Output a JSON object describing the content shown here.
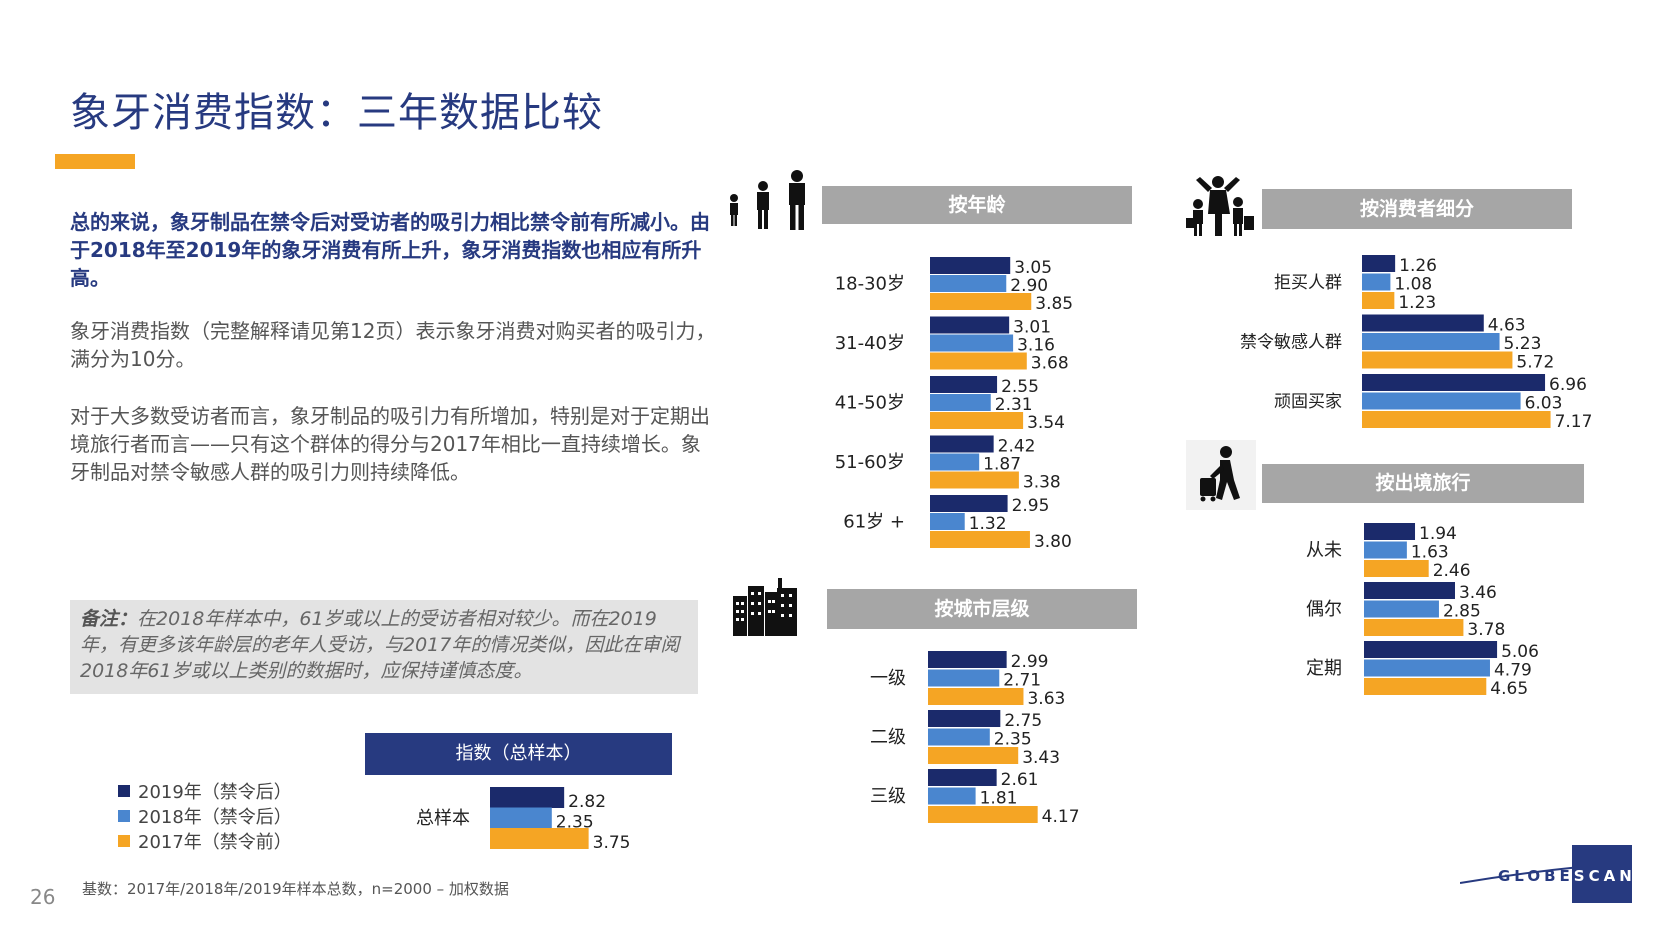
{
  "page": {
    "title": "象牙消费指数：三年数据比较",
    "paragraph1": "总的来说，象牙制品在禁令后对受访者的吸引力相比禁令前有所减小。由于2018年至2019年的象牙消费有所上升，象牙消费指数也相应有所升高。",
    "paragraph2": "象牙消费指数（完整解释请见第12页）表示象牙消费对购买者的吸引力，满分为10分。",
    "paragraph3": "对于大多数受访者而言，象牙制品的吸引力有所增加，特别是对于定期出境旅行者而言——只有这个群体的得分与2017年相比一直持续增长。象牙制品对禁令敏感人群的吸引力则持续降低。",
    "note_label": "备注：",
    "note_text": "在2018年样本中，61岁或以上的受访者相对较少。而在2019年，有更多该年龄层的老年人受访，与2017年的情况类似，因此在审阅2018年61岁或以上类别的数据时，应保持谨慎态度。",
    "footer": "基数：2017年/2018年/2019年样本总数，n=2000 – 加权数据",
    "page_number": "26",
    "logo_left": "GLOBE",
    "logo_right": "SCAN"
  },
  "colors": {
    "y2019": "#1b2a6b",
    "y2018": "#4a86cf",
    "y2017": "#f5a524",
    "panel_header": "#a6a6a6",
    "brand": "#273a80"
  },
  "legend": [
    {
      "label": "2019年（禁令后）",
      "color": "#1b2a6b"
    },
    {
      "label": "2018年（禁令后）",
      "color": "#4a86cf"
    },
    {
      "label": "2017年（禁令前）",
      "color": "#f5a524"
    }
  ],
  "icons": {
    "age": "people-icon",
    "city": "buildings-icon",
    "segment": "family-shopping-icon",
    "travel": "traveler-icon"
  },
  "chart_data": [
    {
      "id": "age",
      "type": "bar",
      "title": "按年龄",
      "categories": [
        "18-30岁",
        "31-40岁",
        "41-50岁",
        "51-60岁",
        "61岁 +"
      ],
      "series": [
        {
          "name": "2019年（禁令后）",
          "values": [
            3.05,
            3.01,
            2.55,
            2.42,
            2.95
          ]
        },
        {
          "name": "2018年（禁令后）",
          "values": [
            2.9,
            3.16,
            2.31,
            1.87,
            1.32
          ]
        },
        {
          "name": "2017年（禁令前）",
          "values": [
            3.85,
            3.68,
            3.54,
            3.38,
            3.8
          ]
        }
      ],
      "labels": [
        [
          "3.05",
          "2.90",
          "3.85"
        ],
        [
          "3.01",
          "3.16",
          "3.68"
        ],
        [
          "2.55",
          "2.31",
          "3.54"
        ],
        [
          "2.42",
          "1.87",
          "3.38"
        ],
        [
          "2.95",
          "1.32",
          "3.80"
        ]
      ]
    },
    {
      "id": "city",
      "type": "bar",
      "title": "按城市层级",
      "categories": [
        "一级",
        "二级",
        "三级"
      ],
      "series": [
        {
          "name": "2019年（禁令后）",
          "values": [
            2.99,
            2.75,
            2.61
          ]
        },
        {
          "name": "2018年（禁令后）",
          "values": [
            2.71,
            2.35,
            1.81
          ]
        },
        {
          "name": "2017年（禁令前）",
          "values": [
            3.63,
            3.43,
            4.17
          ]
        }
      ],
      "labels": [
        [
          "2.99",
          "2.71",
          "3.63"
        ],
        [
          "2.75",
          "2.35",
          "3.43"
        ],
        [
          "2.61",
          "1.81",
          "4.17"
        ]
      ]
    },
    {
      "id": "segment",
      "type": "bar",
      "title": "按消费者细分",
      "categories": [
        "拒买人群",
        "禁令敏感人群",
        "顽固买家"
      ],
      "series": [
        {
          "name": "2019年（禁令后）",
          "values": [
            1.26,
            4.63,
            6.96
          ]
        },
        {
          "name": "2018年（禁令后）",
          "values": [
            1.08,
            5.23,
            6.03
          ]
        },
        {
          "name": "2017年（禁令前）",
          "values": [
            1.23,
            5.72,
            7.17
          ]
        }
      ],
      "labels": [
        [
          "1.26",
          "1.08",
          "1.23"
        ],
        [
          "4.63",
          "5.23",
          "5.72"
        ],
        [
          "6.96",
          "6.03",
          "7.17"
        ]
      ]
    },
    {
      "id": "travel",
      "type": "bar",
      "title": "按出境旅行",
      "categories": [
        "从未",
        "偶尔",
        "定期"
      ],
      "series": [
        {
          "name": "2019年（禁令后）",
          "values": [
            1.94,
            3.46,
            5.06
          ]
        },
        {
          "name": "2018年（禁令后）",
          "values": [
            1.63,
            2.85,
            4.79
          ]
        },
        {
          "name": "2017年（禁令前）",
          "values": [
            2.46,
            3.78,
            4.65
          ]
        }
      ],
      "labels": [
        [
          "1.94",
          "1.63",
          "2.46"
        ],
        [
          "3.46",
          "2.85",
          "3.78"
        ],
        [
          "5.06",
          "4.79",
          "4.65"
        ]
      ]
    },
    {
      "id": "total",
      "type": "bar",
      "title": "指数（总样本）",
      "categories": [
        "总样本"
      ],
      "series": [
        {
          "name": "2019年（禁令后）",
          "values": [
            2.82
          ]
        },
        {
          "name": "2018年（禁令后）",
          "values": [
            2.35
          ]
        },
        {
          "name": "2017年（禁令前）",
          "values": [
            3.75
          ]
        }
      ],
      "labels": [
        [
          "2.82",
          "2.35",
          "3.75"
        ]
      ]
    }
  ]
}
